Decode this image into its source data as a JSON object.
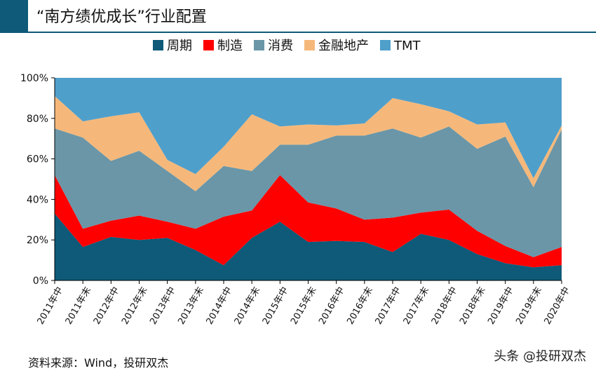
{
  "title": "“南方绩优成长”行业配置",
  "source": "资料来源：Wind，投研双杰",
  "watermark": "头条 @投研双杰",
  "chart_data": {
    "type": "area",
    "stacked": true,
    "normalized": true,
    "categories": [
      "2011年中",
      "2011年末",
      "2012年中",
      "2012年末",
      "2013年中",
      "2013年末",
      "2014年中",
      "2014年末",
      "2015年中",
      "2015年末",
      "2016年中",
      "2016年末",
      "2017年中",
      "2017年末",
      "2018年中",
      "2018年末",
      "2019年中",
      "2019年末",
      "2020年中"
    ],
    "ylim": [
      0,
      100
    ],
    "yticks": [
      "0%",
      "20%",
      "40%",
      "60%",
      "80%",
      "100%"
    ],
    "legend_position": "top",
    "grid": false,
    "series": [
      {
        "name": "周期",
        "color": "#0e5a78",
        "values": [
          33,
          16.5,
          21.5,
          20,
          21,
          15,
          7.5,
          21,
          29,
          19,
          19.5,
          19,
          14,
          23,
          20,
          13,
          8.5,
          6.5,
          7.5
        ]
      },
      {
        "name": "制造",
        "color": "#ff0000",
        "values": [
          19,
          9,
          8,
          12,
          8,
          10.5,
          24,
          13.5,
          23,
          19.5,
          16,
          11,
          17,
          10.5,
          15,
          11.5,
          8.5,
          5,
          9
        ]
      },
      {
        "name": "消费",
        "color": "#6a96a8",
        "values": [
          23,
          45,
          29.5,
          32,
          25,
          18.5,
          25,
          19.5,
          15,
          28.5,
          36,
          41.5,
          44,
          37,
          41,
          40.5,
          54,
          34.5,
          58
        ]
      },
      {
        "name": "金融地产",
        "color": "#f5b87a",
        "values": [
          16,
          8,
          22,
          19,
          5.5,
          8.5,
          9.5,
          28,
          9,
          10,
          5,
          6,
          15,
          16.5,
          7.5,
          12,
          7,
          4.5,
          2
        ]
      },
      {
        "name": "TMT",
        "color": "#4f9fcb",
        "values": [
          9,
          21.5,
          19,
          17,
          40.5,
          47.5,
          34,
          18,
          24,
          23,
          23.5,
          22.5,
          10,
          13,
          16.5,
          23,
          22,
          49.5,
          23.5
        ]
      }
    ]
  }
}
